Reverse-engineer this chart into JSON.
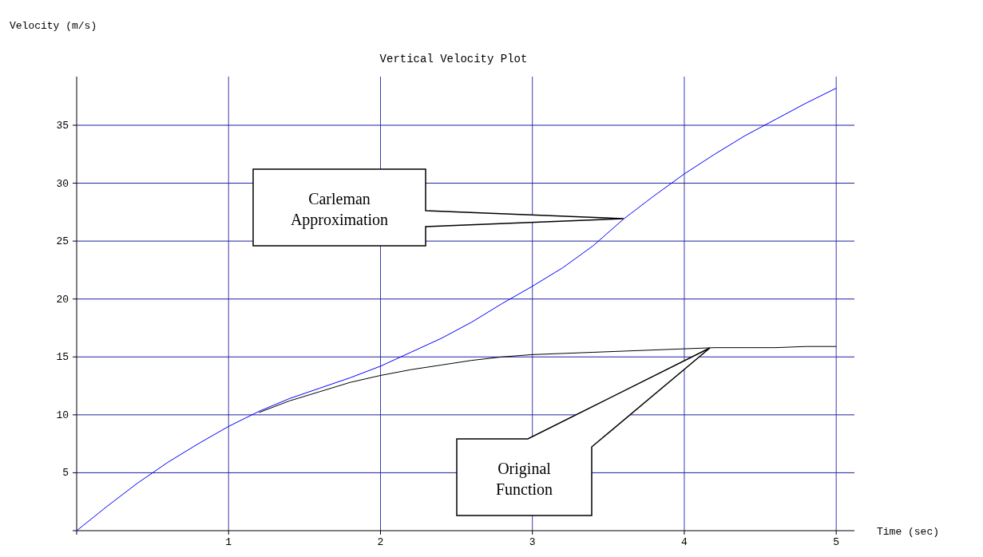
{
  "chart_data": {
    "type": "line",
    "title": "Vertical Velocity Plot",
    "xlabel": "Time (sec)",
    "ylabel": "Velocity (m/s)",
    "xlim": [
      0,
      5.12
    ],
    "ylim": [
      0,
      39.2
    ],
    "xticks": [
      {
        "value": 0,
        "label": null
      },
      1,
      2,
      3,
      4,
      5
    ],
    "yticks": [
      {
        "value": 0,
        "label": null
      },
      5,
      10,
      15,
      20,
      25,
      30,
      35
    ],
    "grid": true,
    "series": [
      {
        "x": [
          0,
          0.2,
          0.4,
          0.6,
          0.8,
          1,
          1.2,
          1.4,
          1.6,
          1.8,
          2,
          2.2,
          2.4,
          2.6,
          2.8,
          3,
          3.2,
          3.4,
          3.6,
          3.8,
          4,
          4.2,
          4.4,
          4.6,
          4.8,
          5
        ],
        "values": [
          0,
          2.1,
          4.1,
          5.9,
          7.5,
          9.0,
          10.3,
          11.4,
          12.3,
          13.2,
          14.2,
          15.4,
          16.6,
          18.0,
          19.6,
          21.1,
          22.7,
          24.6,
          26.9,
          28.9,
          30.8,
          32.5,
          34.1,
          35.5,
          36.9,
          38.2
        ],
        "color": "#0000ff"
      },
      {
        "x": [
          1.2,
          1.4,
          1.6,
          1.8,
          2,
          2.2,
          2.4,
          2.6,
          2.8,
          3,
          3.2,
          3.4,
          3.6,
          3.8,
          4,
          4.2,
          4.4,
          4.6,
          4.8,
          5
        ],
        "values": [
          10.2,
          11.2,
          12.0,
          12.8,
          13.4,
          13.9,
          14.3,
          14.7,
          15.0,
          15.2,
          15.3,
          15.4,
          15.5,
          15.6,
          15.7,
          15.8,
          15.8,
          15.8,
          15.9,
          15.9
        ],
        "color": "#000000"
      }
    ],
    "annotations": [
      "Carleman Approximation",
      "Original Function"
    ]
  }
}
